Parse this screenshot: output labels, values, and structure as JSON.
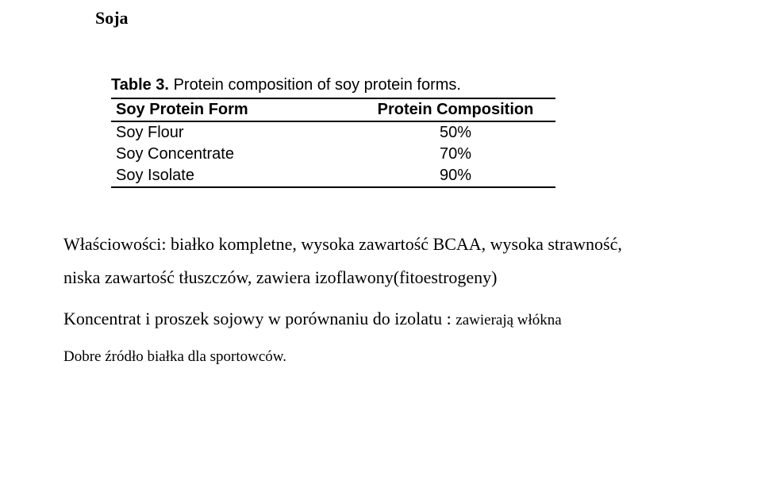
{
  "title": "Soja",
  "table": {
    "caption_label": "Table 3.",
    "caption_text": "Protein composition of soy protein forms.",
    "header_form": "Soy Protein Form",
    "header_comp": "Protein Composition",
    "rows": [
      {
        "form": "Soy Flour",
        "comp": "50%"
      },
      {
        "form": "Soy Concentrate",
        "comp": "70%"
      },
      {
        "form": "Soy Isolate",
        "comp": "90%"
      }
    ]
  },
  "para1_a": "Właściowości: białko kompletne, wysoka zawartość BCAA, wysoka strawność,",
  "para1_b": "niska zawartość tłuszczów, zawiera izoflawony(fitoestrogeny)",
  "para2_a": "Koncentrat i proszek sojowy w porównaniu do izolatu : ",
  "para2_b": "zawierają włókna",
  "para3": "Dobre źródło białka dla sportowców."
}
